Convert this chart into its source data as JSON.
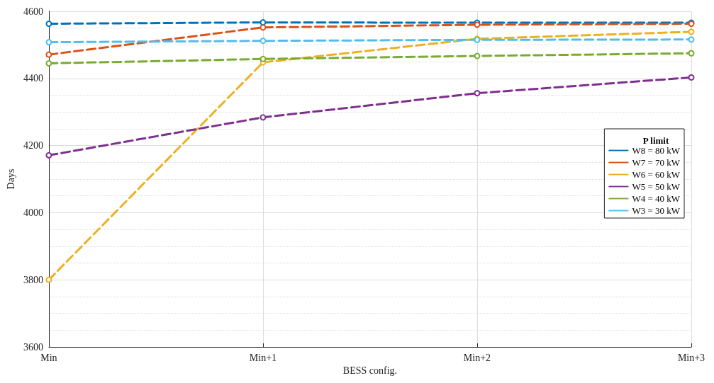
{
  "chart_data": {
    "type": "line",
    "xlabel": "BESS config.",
    "ylabel": "Days",
    "legend_title": "P limit",
    "categories": [
      "Min",
      "Min+1",
      "Min+2",
      "Min+3"
    ],
    "ylim": [
      3600,
      4600
    ],
    "yticks": [
      3600,
      3800,
      4000,
      4200,
      4400,
      4600
    ],
    "grid": true,
    "legend": "right",
    "marker": "circle",
    "line_style": "dashed",
    "series": [
      {
        "name": "W8 = 80 kW",
        "color": "#0072bd",
        "values": [
          4563,
          4567,
          4566,
          4566
        ]
      },
      {
        "name": "W7 = 70 kW",
        "color": "#d95319",
        "values": [
          4471,
          4552,
          4560,
          4563
        ]
      },
      {
        "name": "W6 = 60 kW",
        "color": "#edb120",
        "values": [
          3800,
          4448,
          4518,
          4539
        ]
      },
      {
        "name": "W5 = 50 kW",
        "color": "#7e2f8e",
        "values": [
          4171,
          4284,
          4356,
          4403
        ]
      },
      {
        "name": "W4 = 40 kW",
        "color": "#77ac30",
        "values": [
          4445,
          4458,
          4467,
          4475
        ]
      },
      {
        "name": "W3 = 30 kW",
        "color": "#4dbeee",
        "values": [
          4508,
          4512,
          4515,
          4516
        ]
      }
    ]
  }
}
